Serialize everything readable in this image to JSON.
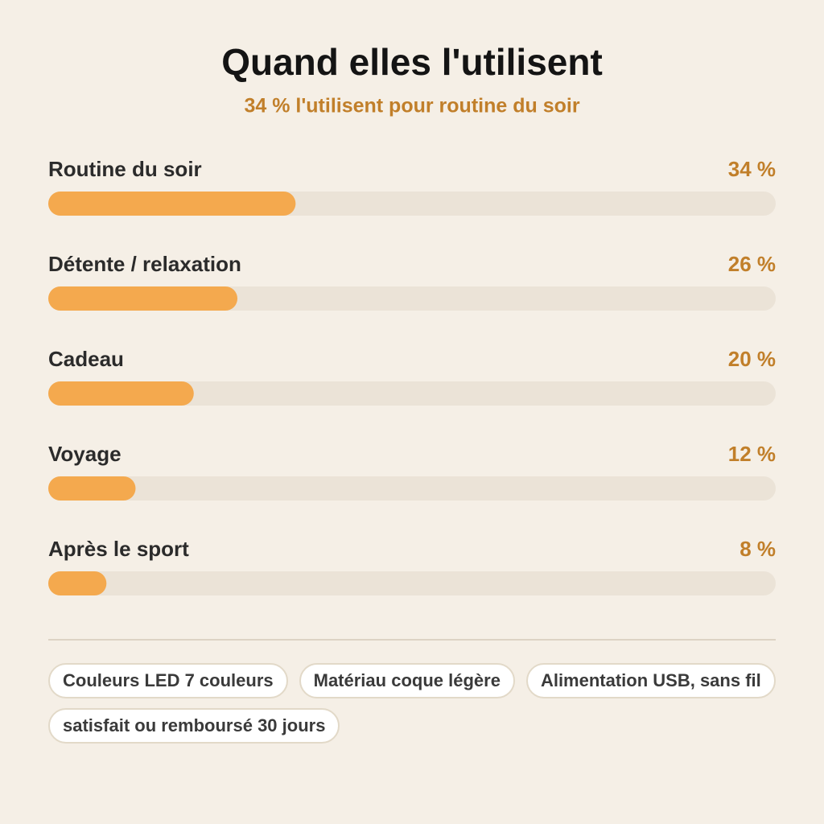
{
  "chart_data": {
    "type": "bar",
    "orientation": "horizontal",
    "title": "Quand elles l'utilisent",
    "subtitle": "34 % l'utilisent pour routine du soir",
    "categories": [
      "Routine du soir",
      "Détente / relaxation",
      "Cadeau",
      "Voyage",
      "Après le sport"
    ],
    "values": [
      34,
      26,
      20,
      12,
      8
    ],
    "value_labels": [
      "34 %",
      "26 %",
      "20 %",
      "12 %",
      "8 %"
    ],
    "color": "#f4a94e",
    "track_color": "#ebe3d7",
    "xlim": [
      0,
      100
    ]
  },
  "tags": [
    "Couleurs LED 7 couleurs",
    "Matériau coque légère",
    "Alimentation USB, sans fil",
    "satisfait ou remboursé 30 jours"
  ]
}
